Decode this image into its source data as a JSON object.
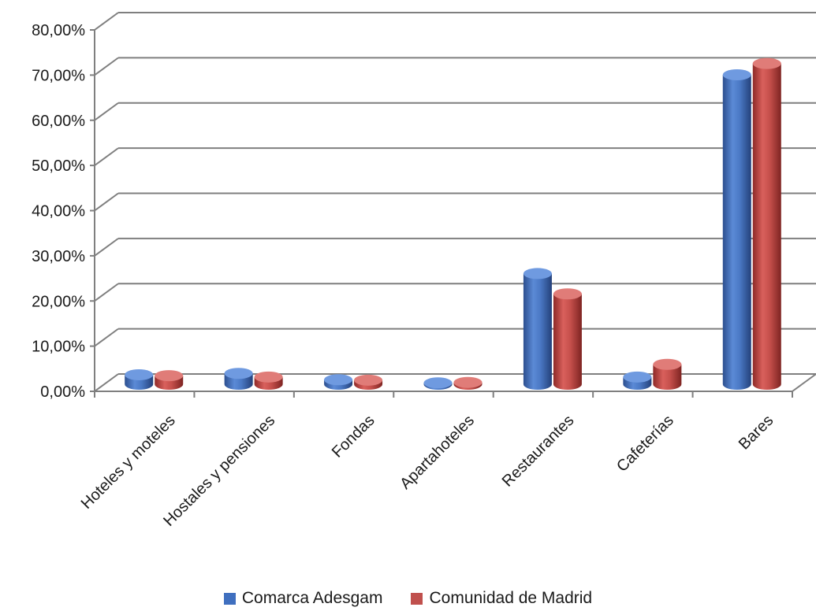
{
  "chart_data": {
    "type": "bar",
    "categories": [
      "Hoteles y moteles",
      "Hostales y pensiones",
      "Fondas",
      "Apartahoteles",
      "Restaurantes",
      "Cafeterías",
      "Bares"
    ],
    "series": [
      {
        "name": "Comarca Adesgam",
        "color": "#3f6fbf",
        "values": [
          2.1,
          2.4,
          1.0,
          0.3,
          24.5,
          1.6,
          68.5
        ]
      },
      {
        "name": "Comunidad de Madrid",
        "color": "#c0504d",
        "values": [
          1.9,
          1.6,
          0.9,
          0.4,
          20.0,
          4.4,
          71.0
        ]
      }
    ],
    "ylim": [
      0,
      80
    ],
    "yticks": [
      "0,00%",
      "10,00%",
      "20,00%",
      "30,00%",
      "40,00%",
      "50,00%",
      "60,00%",
      "70,00%",
      "80,00%"
    ],
    "grid": true,
    "legend_position": "bottom"
  }
}
